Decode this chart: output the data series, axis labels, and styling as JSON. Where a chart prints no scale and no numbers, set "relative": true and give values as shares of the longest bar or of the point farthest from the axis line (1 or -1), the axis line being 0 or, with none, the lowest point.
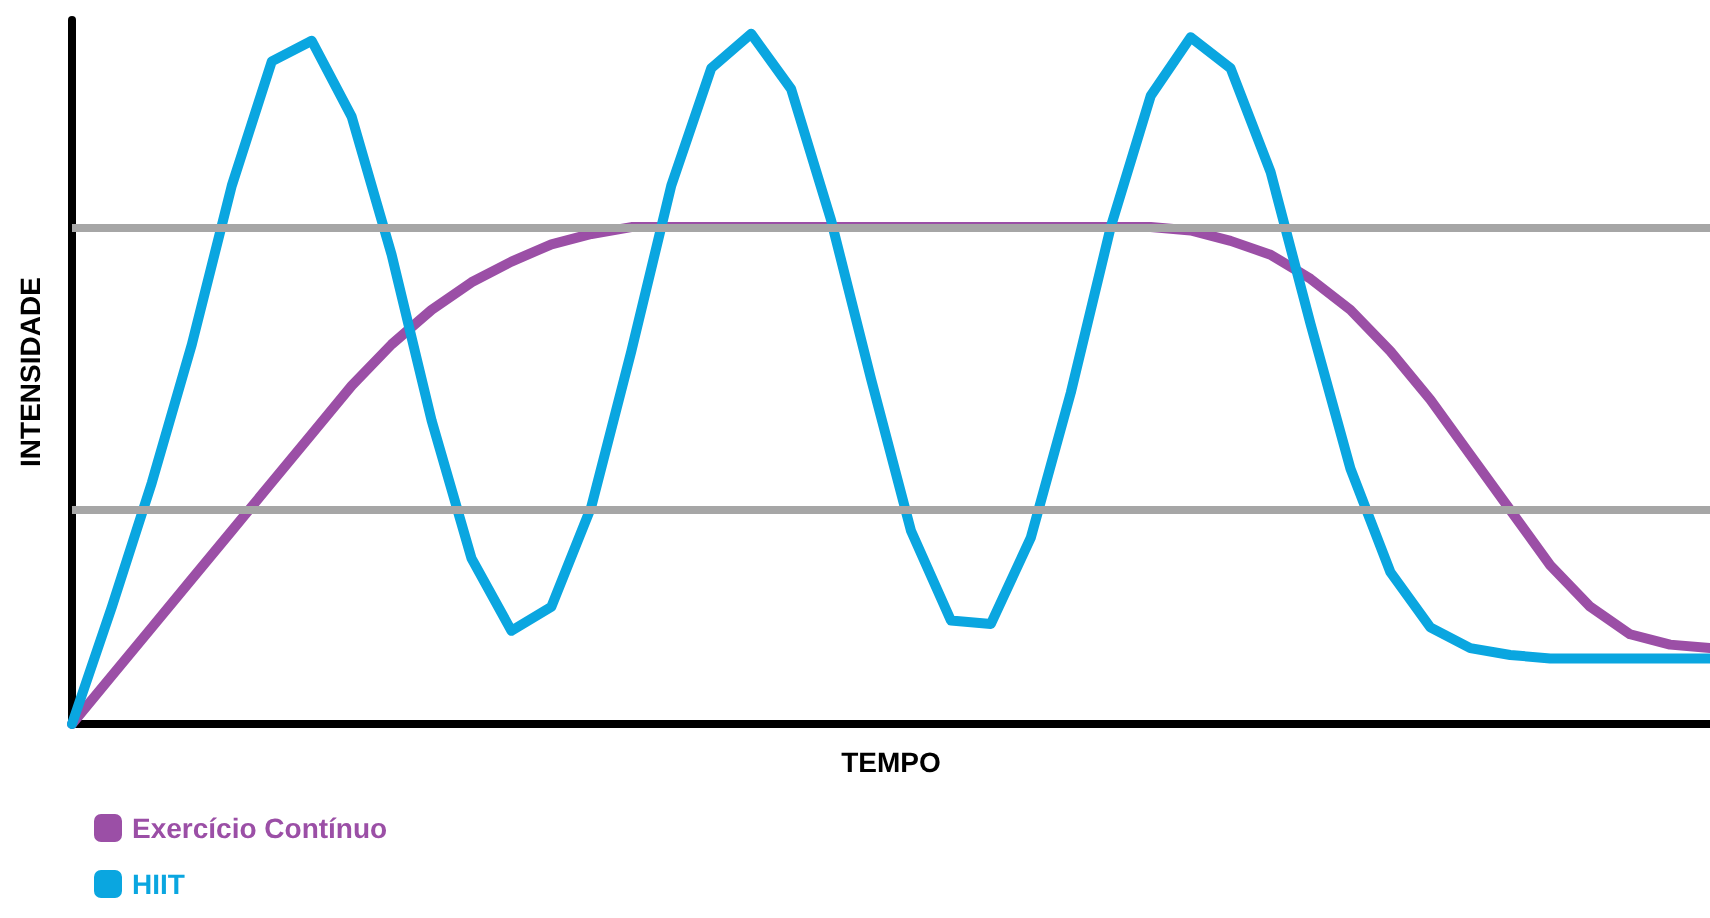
{
  "chart_data": {
    "type": "line",
    "relative": true,
    "xlabel": "TEMPO",
    "ylabel": "INTENSIDADE",
    "legend": "bottom left",
    "grid": false,
    "marker": "none",
    "line_style": "solid",
    "categories": [
      null,
      null,
      null,
      null,
      null,
      null,
      null,
      null,
      null,
      null,
      null,
      null,
      null,
      null,
      null,
      null,
      null,
      null,
      null,
      null,
      null,
      null,
      null,
      null,
      null,
      null,
      null,
      null,
      null,
      null,
      null,
      null,
      null,
      null,
      null,
      null,
      null,
      null,
      null,
      null,
      null,
      null
    ],
    "series": [
      {
        "name": "Exercício Contínuo",
        "color": "#9b4fa6",
        "values": [
          0,
          0.07,
          0.14,
          0.21,
          0.28,
          0.35,
          0.42,
          0.49,
          0.55,
          0.6,
          0.64,
          0.67,
          0.695,
          0.71,
          0.72,
          0.72,
          0.72,
          0.72,
          0.72,
          0.72,
          0.72,
          0.72,
          0.72,
          0.72,
          0.72,
          0.72,
          0.72,
          0.72,
          0.715,
          0.7,
          0.68,
          0.645,
          0.6,
          0.54,
          0.47,
          0.39,
          0.31,
          0.23,
          0.17,
          0.13,
          0.115,
          0.11
        ]
      },
      {
        "name": "HIIT",
        "color": "#0aa6e0",
        "values": [
          0,
          0.17,
          0.35,
          0.55,
          0.78,
          0.96,
          0.99,
          0.88,
          0.68,
          0.44,
          0.24,
          0.135,
          0.17,
          0.315,
          0.54,
          0.78,
          0.95,
          1,
          0.92,
          0.73,
          0.5,
          0.28,
          0.15,
          0.145,
          0.27,
          0.48,
          0.72,
          0.91,
          0.995,
          0.95,
          0.8,
          0.58,
          0.37,
          0.22,
          0.14,
          0.11,
          0.1,
          0.095,
          0.095,
          0.095,
          0.095,
          0.095
        ]
      }
    ],
    "ref_lines": [
      {
        "axis": "y",
        "value": 0.72,
        "color": "#a6a6a6"
      },
      {
        "axis": "y",
        "value": 0.31,
        "color": "#a6a6a6"
      }
    ]
  }
}
